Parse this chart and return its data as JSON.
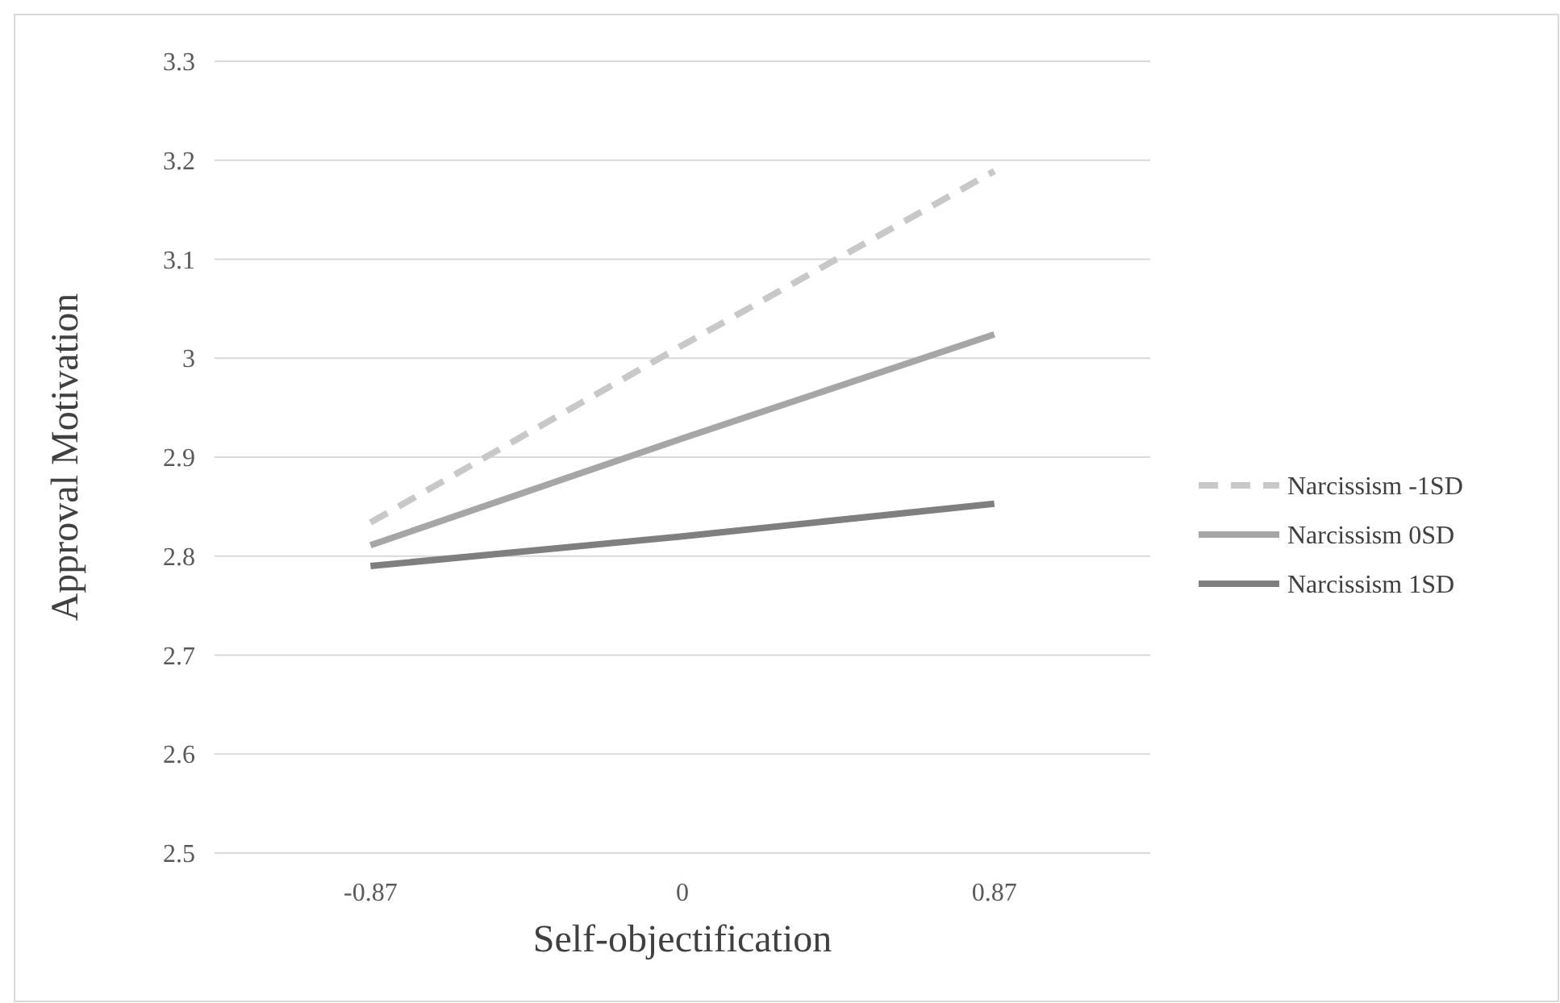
{
  "chart_data": {
    "type": "line",
    "xlabel": "Self-objectification",
    "ylabel": "Approval Motivation",
    "categories": [
      "-0.87",
      "0",
      "0.87"
    ],
    "series": [
      {
        "name": "Narcissism -1SD",
        "color": "#c8c8c8",
        "line_style": "dashed",
        "values": [
          2.834,
          3.013,
          3.189
        ]
      },
      {
        "name": "Narcissism 0SD",
        "color": "#a6a6a6",
        "values": [
          2.811,
          2.919,
          3.024
        ]
      },
      {
        "name": "Narcissism 1SD",
        "color": "#7f7f7f",
        "values": [
          2.79,
          2.82,
          2.853
        ]
      }
    ],
    "ylim": [
      2.5,
      3.3
    ],
    "yticks": [
      2.5,
      2.6,
      2.7,
      2.8,
      2.9,
      3,
      3.1,
      3.2,
      3.3
    ],
    "grid": "y",
    "legend": "right",
    "marker": "none",
    "line_style": "solid"
  }
}
